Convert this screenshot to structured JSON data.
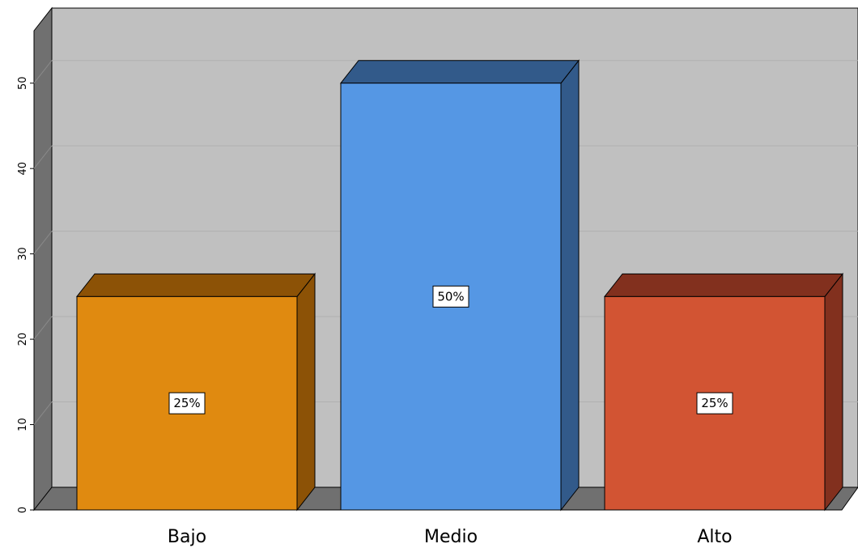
{
  "chart_data": {
    "type": "bar",
    "title": "",
    "xlabel": "",
    "ylabel": "",
    "categories": [
      "Bajo",
      "Medio",
      "Alto"
    ],
    "values": [
      25,
      50,
      25
    ],
    "data_labels": [
      "25%",
      "50%",
      "25%"
    ],
    "ylim": [
      0,
      55
    ],
    "yticks": [
      0,
      10,
      20,
      30,
      40,
      50
    ],
    "grid": true,
    "style": "3d",
    "colors": [
      "#E08A10",
      "#5597E4",
      "#D25433"
    ],
    "side_colors": [
      "#8C5206",
      "#325A8A",
      "#82301E"
    ],
    "wall_color": "#C0C0C0",
    "wall_side_color": "#707070"
  }
}
